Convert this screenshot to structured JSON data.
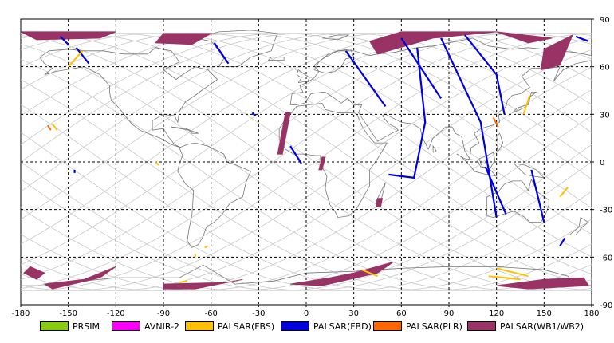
{
  "map": {
    "lon_range": [
      -180,
      180
    ],
    "lat_range": [
      -90,
      90
    ],
    "lon_ticks": [
      "-180",
      "-150",
      "-120",
      "-90",
      "-60",
      "-30",
      "0",
      "30",
      "60",
      "90",
      "120",
      "150",
      "180"
    ],
    "lat_ticks": [
      "90",
      "60",
      "30",
      "0",
      "-30",
      "-60",
      "-90"
    ],
    "grid": true
  },
  "legend": [
    {
      "label": "PRSIM",
      "color": "#88cc11"
    },
    {
      "label": "AVNIR-2",
      "color": "#ff00ff"
    },
    {
      "label": "PALSAR(FBS)",
      "color": "#ffc000"
    },
    {
      "label": "PALSAR(FBD)",
      "color": "#0000dd"
    },
    {
      "label": "PALSAR(PLR)",
      "color": "#ff6600"
    },
    {
      "label": "PALSAR(WB1/WB2)",
      "color": "#993366"
    }
  ]
}
